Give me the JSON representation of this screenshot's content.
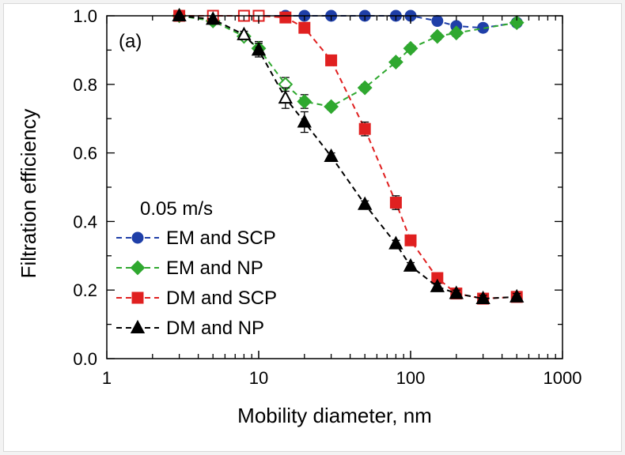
{
  "chart_data": {
    "type": "scatter",
    "panel_label": "(a)",
    "xlabel": "Mobility diameter, nm",
    "ylabel": "Filtration efficiency",
    "xscale": "log",
    "xlim": [
      1,
      1000
    ],
    "ylim": [
      0.0,
      1.0
    ],
    "x_ticks": [
      1,
      10,
      100,
      1000
    ],
    "x_tick_labels": [
      "1",
      "10",
      "100",
      "1000"
    ],
    "y_ticks": [
      0.0,
      0.2,
      0.4,
      0.6,
      0.8,
      1.0
    ],
    "y_tick_labels": [
      "0.0",
      "0.2",
      "0.4",
      "0.6",
      "0.8",
      "1.0"
    ],
    "grid": false,
    "legend": {
      "title": "0.05 m/s",
      "placement": "lower-left"
    },
    "series": [
      {
        "name": "EM and SCP",
        "color": "#1f3fa8",
        "marker": "circle",
        "line": "dashed",
        "x": [
          3,
          5,
          8,
          10,
          15,
          20,
          30,
          50,
          80,
          100,
          150,
          200,
          300,
          500
        ],
        "y": [
          1.0,
          1.0,
          1.0,
          1.0,
          1.0,
          1.0,
          1.0,
          1.0,
          1.0,
          1.0,
          0.985,
          0.97,
          0.965,
          0.98
        ],
        "err": [
          0,
          0,
          0,
          0,
          0,
          0,
          0,
          0,
          0,
          0,
          0.005,
          0.005,
          0.005,
          0.005
        ],
        "open": [
          false,
          false,
          true,
          true,
          false,
          false,
          false,
          false,
          false,
          false,
          false,
          false,
          false,
          false
        ]
      },
      {
        "name": "EM and NP",
        "color": "#2fa82f",
        "marker": "diamond",
        "line": "dashed",
        "x": [
          3,
          5,
          8,
          10,
          15,
          20,
          30,
          50,
          80,
          100,
          150,
          200,
          500
        ],
        "y": [
          1.0,
          0.985,
          0.94,
          0.905,
          0.8,
          0.75,
          0.735,
          0.79,
          0.865,
          0.905,
          0.94,
          0.95,
          0.98
        ],
        "err": [
          0,
          0.01,
          0.01,
          0.02,
          0.02,
          0.02,
          0.01,
          0.01,
          0.01,
          0.01,
          0.01,
          0.01,
          0.005
        ],
        "open": [
          false,
          false,
          true,
          false,
          true,
          false,
          false,
          false,
          false,
          false,
          false,
          false,
          false
        ]
      },
      {
        "name": "DM and SCP",
        "color": "#e02020",
        "marker": "square",
        "line": "dashed",
        "x": [
          3,
          5,
          8,
          10,
          15,
          20,
          30,
          50,
          80,
          100,
          150,
          200,
          300,
          500
        ],
        "y": [
          1.0,
          1.0,
          1.0,
          1.0,
          0.995,
          0.965,
          0.87,
          0.67,
          0.455,
          0.345,
          0.235,
          0.19,
          0.175,
          0.18
        ],
        "err": [
          0,
          0,
          0,
          0,
          0.005,
          0.005,
          0.01,
          0.02,
          0.02,
          0.01,
          0.01,
          0.01,
          0.01,
          0.01
        ],
        "open": [
          false,
          true,
          true,
          true,
          false,
          false,
          false,
          false,
          false,
          false,
          false,
          false,
          false,
          false
        ]
      },
      {
        "name": "DM and NP",
        "color": "#000000",
        "marker": "triangle",
        "line": "dashed",
        "x": [
          3,
          5,
          8,
          10,
          15,
          20,
          30,
          50,
          80,
          100,
          150,
          200,
          300,
          500
        ],
        "y": [
          1.0,
          0.99,
          0.945,
          0.9,
          0.76,
          0.69,
          0.59,
          0.45,
          0.335,
          0.27,
          0.21,
          0.19,
          0.175,
          0.18
        ],
        "err": [
          0,
          0.01,
          0.01,
          0.02,
          0.03,
          0.03,
          0.01,
          0.01,
          0.01,
          0.01,
          0.01,
          0.01,
          0.01,
          0.01
        ],
        "open": [
          false,
          false,
          true,
          false,
          true,
          false,
          false,
          false,
          false,
          false,
          false,
          false,
          false,
          false
        ]
      }
    ]
  }
}
